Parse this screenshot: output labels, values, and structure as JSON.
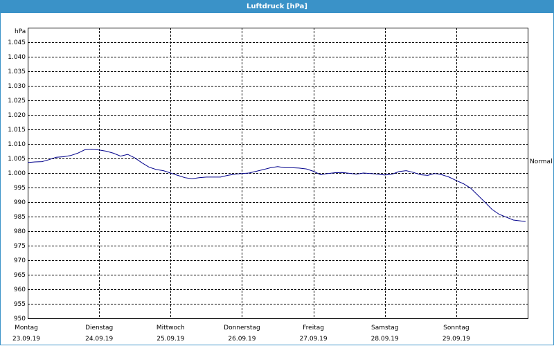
{
  "window": {
    "title": "Luftdruck [hPa]"
  },
  "colors": {
    "titlebar": "#3a92c8",
    "line": "#00008b",
    "grid": "#000000"
  },
  "chart_data": {
    "type": "line",
    "ylabel": "hPa",
    "ylim": [
      950,
      1050
    ],
    "yticks": [
      {
        "v": 950,
        "label": "950"
      },
      {
        "v": 955,
        "label": "955"
      },
      {
        "v": 960,
        "label": "960"
      },
      {
        "v": 965,
        "label": "965"
      },
      {
        "v": 970,
        "label": "970"
      },
      {
        "v": 975,
        "label": "975"
      },
      {
        "v": 980,
        "label": "980"
      },
      {
        "v": 985,
        "label": "985"
      },
      {
        "v": 990,
        "label": "990"
      },
      {
        "v": 995,
        "label": "995"
      },
      {
        "v": 1000,
        "label": "1.000"
      },
      {
        "v": 1005,
        "label": "1.005"
      },
      {
        "v": 1010,
        "label": "1.010"
      },
      {
        "v": 1015,
        "label": "1.015"
      },
      {
        "v": 1020,
        "label": "1.020"
      },
      {
        "v": 1025,
        "label": "1.025"
      },
      {
        "v": 1030,
        "label": "1.030"
      },
      {
        "v": 1035,
        "label": "1.035"
      },
      {
        "v": 1040,
        "label": "1.040"
      },
      {
        "v": 1045,
        "label": "1.045"
      }
    ],
    "xlim": [
      0,
      7
    ],
    "days": [
      {
        "name": "Montag",
        "date": "23.09.19"
      },
      {
        "name": "Dienstag",
        "date": "24.09.19"
      },
      {
        "name": "Mittwoch",
        "date": "25.09.19"
      },
      {
        "name": "Donnerstag",
        "date": "26.09.19"
      },
      {
        "name": "Freitag",
        "date": "27.09.19"
      },
      {
        "name": "Samstag",
        "date": "28.09.19"
      },
      {
        "name": "Sonntag",
        "date": "29.09.19"
      }
    ],
    "reference": {
      "value": 1004,
      "label": "Normal"
    },
    "grid": true,
    "series": [
      {
        "x": [
          0,
          0.1,
          0.2,
          0.3,
          0.4,
          0.5,
          0.6,
          0.7,
          0.8,
          0.9,
          1.0,
          1.1,
          1.2,
          1.3,
          1.4,
          1.5,
          1.6,
          1.7,
          1.8,
          1.9,
          2.0,
          2.1,
          2.2,
          2.3,
          2.4,
          2.5,
          2.6,
          2.7,
          2.8,
          2.9,
          3.0,
          3.1,
          3.2,
          3.3,
          3.4,
          3.5,
          3.6,
          3.7,
          3.8,
          3.9,
          4.0,
          4.1,
          4.2,
          4.3,
          4.4,
          4.5,
          4.6,
          4.7,
          4.8,
          4.9,
          5.0,
          5.1,
          5.2,
          5.3,
          5.4,
          5.5,
          5.6,
          5.7,
          5.8,
          5.9,
          6.0,
          6.1,
          6.2,
          6.3,
          6.4,
          6.5,
          6.6,
          6.7,
          6.8,
          6.9,
          6.97
        ],
        "values": [
          1003.6,
          1003.8,
          1003.9,
          1004.6,
          1005.4,
          1005.6,
          1006.0,
          1006.8,
          1008.0,
          1008.2,
          1007.9,
          1007.5,
          1006.8,
          1005.8,
          1006.4,
          1005.2,
          1003.5,
          1002.0,
          1001.2,
          1000.8,
          1000.0,
          999.2,
          998.4,
          998.0,
          998.4,
          998.6,
          998.6,
          998.6,
          999.2,
          999.6,
          999.8,
          1000.0,
          1000.6,
          1001.2,
          1001.8,
          1002.2,
          1001.8,
          1001.8,
          1001.7,
          1001.4,
          1000.6,
          999.4,
          999.8,
          1000.1,
          1000.2,
          999.9,
          999.6,
          1000.0,
          999.8,
          999.6,
          999.3,
          999.6,
          1000.5,
          1000.8,
          1000.2,
          999.4,
          999.2,
          999.8,
          999.4,
          998.6,
          997.4,
          996.3,
          994.8,
          992.4,
          990.0,
          987.5,
          985.8,
          984.8,
          983.8,
          983.5,
          983.3
        ]
      }
    ]
  }
}
